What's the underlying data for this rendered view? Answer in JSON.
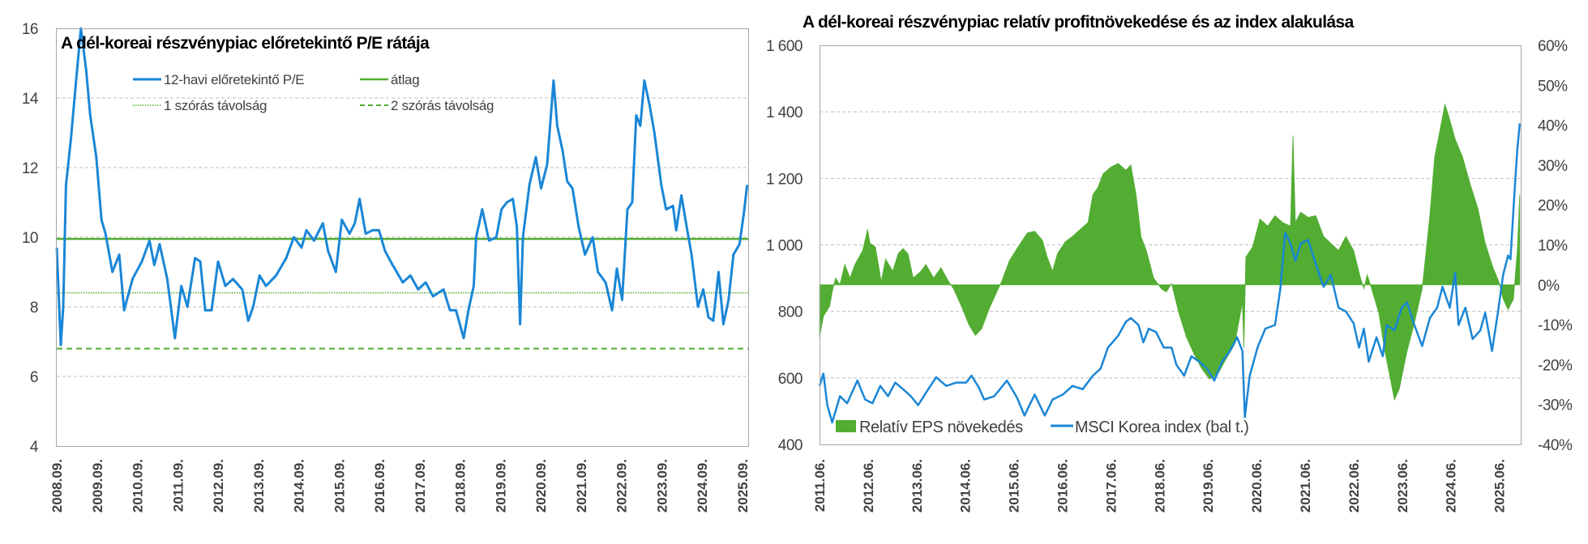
{
  "colors": {
    "blue": "#1a86d6",
    "green": "#52ad32",
    "grid": "#bfbfbf",
    "axis": "#a6a6a6"
  },
  "chart_data": [
    {
      "type": "line",
      "title": "A dél-koreai részvénypiac előretekintő P/E rátája",
      "ylim": [
        4,
        16
      ],
      "yticks": [
        4,
        6,
        8,
        10,
        12,
        14,
        16
      ],
      "xlim": [
        2008.75,
        2025.9
      ],
      "xtick_labels": [
        "2008.09.",
        "2009.09.",
        "2010.09.",
        "2011.09.",
        "2012.09.",
        "2013.09.",
        "2014.09.",
        "2015.09.",
        "2016.09.",
        "2017.09.",
        "2018.09.",
        "2019.09.",
        "2020.09.",
        "2021.09.",
        "2022.09.",
        "2023.09.",
        "2024.09.",
        "2025.09."
      ],
      "grid": true,
      "legend_placement": "top",
      "series": [
        {
          "name": "12-havi előretekintő P/E",
          "style": "line",
          "x": [
            2008.75,
            2008.85,
            2008.91,
            2008.98,
            2009.1,
            2009.23,
            2009.35,
            2009.48,
            2009.58,
            2009.73,
            2009.86,
            2009.96,
            2010.13,
            2010.3,
            2010.42,
            2010.63,
            2010.86,
            2011.05,
            2011.17,
            2011.3,
            2011.49,
            2011.68,
            2011.84,
            2011.99,
            2012.18,
            2012.31,
            2012.43,
            2012.59,
            2012.75,
            2012.93,
            2013.12,
            2013.35,
            2013.5,
            2013.62,
            2013.78,
            2013.94,
            2014.19,
            2014.44,
            2014.63,
            2014.82,
            2014.94,
            2015.13,
            2015.35,
            2015.48,
            2015.67,
            2015.82,
            2016.01,
            2016.14,
            2016.26,
            2016.41,
            2016.58,
            2016.74,
            2016.89,
            2017.08,
            2017.33,
            2017.52,
            2017.71,
            2017.9,
            2018.08,
            2018.34,
            2018.5,
            2018.65,
            2018.84,
            2018.96,
            2019.09,
            2019.15,
            2019.3,
            2019.47,
            2019.65,
            2019.78,
            2019.91,
            2020.06,
            2020.16,
            2020.24,
            2020.31,
            2020.47,
            2020.63,
            2020.76,
            2020.91,
            2021.07,
            2021.16,
            2021.29,
            2021.41,
            2021.54,
            2021.69,
            2021.85,
            2022.04,
            2022.17,
            2022.36,
            2022.52,
            2022.64,
            2022.77,
            2022.9,
            2023.02,
            2023.12,
            2023.22,
            2023.32,
            2023.45,
            2023.57,
            2023.74,
            2023.86,
            2024.03,
            2024.11,
            2024.24,
            2024.37,
            2024.49,
            2024.65,
            2024.78,
            2024.91,
            2025.03,
            2025.16,
            2025.28,
            2025.41,
            2025.53,
            2025.68,
            2025.79,
            2025.87
          ],
          "y": [
            9.7,
            6.9,
            8.0,
            11.5,
            12.8,
            14.5,
            16.0,
            14.8,
            13.5,
            12.3,
            10.5,
            10.1,
            9.0,
            9.5,
            7.9,
            8.8,
            9.3,
            9.9,
            9.2,
            9.8,
            8.8,
            7.1,
            8.6,
            8.0,
            9.4,
            9.3,
            7.9,
            7.9,
            9.3,
            8.6,
            8.8,
            8.5,
            7.6,
            8.0,
            8.9,
            8.6,
            8.9,
            9.4,
            10.0,
            9.7,
            10.2,
            9.9,
            10.4,
            9.6,
            9.0,
            10.5,
            10.1,
            10.4,
            11.1,
            10.1,
            10.2,
            10.2,
            9.6,
            9.2,
            8.7,
            8.9,
            8.5,
            8.7,
            8.3,
            8.5,
            7.9,
            7.9,
            7.1,
            7.9,
            8.6,
            10.0,
            10.8,
            9.9,
            10.0,
            10.8,
            11.0,
            11.1,
            10.3,
            7.5,
            10.0,
            11.5,
            12.3,
            11.4,
            12.1,
            14.5,
            13.2,
            12.5,
            11.6,
            11.4,
            10.3,
            9.5,
            10.0,
            9.0,
            8.7,
            7.9,
            9.1,
            8.2,
            10.8,
            11.0,
            13.5,
            13.2,
            14.5,
            13.8,
            13.0,
            11.5,
            10.8,
            10.9,
            10.2,
            11.2,
            10.3,
            9.5,
            8.0,
            8.5,
            7.7,
            7.6,
            9.0,
            7.5,
            8.2,
            9.5,
            9.8,
            10.7,
            11.5
          ]
        },
        {
          "name": "átlag",
          "style": "solid",
          "value": 9.95
        },
        {
          "name": "1 szórás távolság",
          "style": "dotted",
          "value": 8.4
        },
        {
          "name": "2 szórás távolság",
          "style": "dashed",
          "value": 6.8
        }
      ]
    },
    {
      "type": "line+area",
      "title": "A dél-koreai részvénypiac relatív profitnövekedése és az index alakulása",
      "ylim_left": [
        400,
        1600
      ],
      "yticks_left": [
        "400",
        "600",
        "800",
        "1 000",
        "1 200",
        "1 400",
        "1 600"
      ],
      "ylim_right": [
        -40,
        60
      ],
      "yticks_right": [
        "-40%",
        "-30%",
        "-20%",
        "-10%",
        "0%",
        "10%",
        "20%",
        "30%",
        "40%",
        "50%",
        "60%"
      ],
      "xlim": [
        2011.42,
        2025.84
      ],
      "xtick_labels": [
        "2011.06.",
        "2012.06.",
        "2013.06.",
        "2014.06.",
        "2015.06.",
        "2016.06.",
        "2017.06.",
        "2018.06.",
        "2019.06.",
        "2020.06.",
        "2021.06.",
        "2022.06.",
        "2023.06.",
        "2024.06.",
        "2025.06."
      ],
      "grid": true,
      "legend_placement": "bottom-left",
      "series": [
        {
          "name": "Relatív EPS növekedés",
          "style": "area",
          "axis": "right",
          "x": [
            2011.42,
            2011.5,
            2011.63,
            2011.68,
            2011.75,
            2011.84,
            2011.94,
            2012.05,
            2012.15,
            2012.31,
            2012.41,
            2012.46,
            2012.57,
            2012.69,
            2012.78,
            2012.93,
            2013.04,
            2013.14,
            2013.24,
            2013.35,
            2013.51,
            2013.61,
            2013.77,
            2013.92,
            2014.08,
            2014.18,
            2014.34,
            2014.5,
            2014.63,
            2014.76,
            2014.91,
            2015.07,
            2015.17,
            2015.33,
            2015.49,
            2015.7,
            2015.85,
            2016.01,
            2016.11,
            2016.22,
            2016.32,
            2016.48,
            2016.63,
            2016.79,
            2016.95,
            2017.05,
            2017.15,
            2017.26,
            2017.42,
            2017.57,
            2017.73,
            2017.83,
            2017.94,
            2018.04,
            2018.15,
            2018.3,
            2018.46,
            2018.56,
            2018.67,
            2018.82,
            2018.98,
            2019.14,
            2019.29,
            2019.45,
            2019.61,
            2019.76,
            2019.97,
            2020.13,
            2020.16,
            2020.2,
            2020.34,
            2020.49,
            2020.65,
            2020.8,
            2020.96,
            2021.12,
            2021.17,
            2021.22,
            2021.33,
            2021.48,
            2021.64,
            2021.8,
            2021.95,
            2022.11,
            2022.26,
            2022.42,
            2022.56,
            2022.63,
            2022.7,
            2022.79,
            2022.94,
            2023.05,
            2023.15,
            2023.26,
            2023.36,
            2023.52,
            2023.67,
            2023.83,
            2023.99,
            2024.09,
            2024.19,
            2024.3,
            2024.37,
            2024.51,
            2024.66,
            2024.82,
            2024.98,
            2025.13,
            2025.29,
            2025.41,
            2025.5,
            2025.6,
            2025.71,
            2025.79,
            2025.84
          ],
          "y": [
            -13.2,
            -7.9,
            -5.3,
            -1.8,
            1.7,
            0,
            5.1,
            1.7,
            5.1,
            8.6,
            13.9,
            10.4,
            9.5,
            0.8,
            6.4,
            3.4,
            7.8,
            9.1,
            7.8,
            1.7,
            3.4,
            5.1,
            1.7,
            4.3,
            0.8,
            -1.0,
            -5.3,
            -10.1,
            -12.7,
            -11.0,
            -6.1,
            -1.8,
            0.8,
            6.0,
            9.1,
            13.0,
            13.4,
            11.2,
            6.9,
            3.4,
            7.8,
            10.8,
            12.1,
            13.9,
            15.6,
            22.6,
            24.3,
            27.8,
            29.5,
            30.4,
            28.7,
            30.0,
            22.6,
            12.1,
            8.6,
            1.7,
            -1.0,
            -1.8,
            0.3,
            -7.1,
            -13.2,
            -17.5,
            -21.0,
            -23.6,
            -22.7,
            -19.3,
            -14.9,
            -4.4,
            -15.8,
            6.9,
            9.5,
            16.5,
            14.7,
            17.3,
            15.6,
            14.7,
            37.4,
            15.6,
            18.2,
            16.9,
            17.3,
            12.1,
            10.4,
            8.6,
            12.1,
            8.6,
            1.7,
            -1.0,
            2.5,
            -1.0,
            -7.1,
            -15.8,
            -21.9,
            -28.8,
            -26.1,
            -16.6,
            -9.6,
            -1.0,
            17.3,
            32.1,
            38.2,
            45.2,
            42.6,
            36.5,
            32.1,
            25.2,
            19.1,
            10.4,
            4.3,
            0.8,
            -3.6,
            -6.2,
            -3.6,
            8.6,
            22.6
          ]
        },
        {
          "name": "MSCI Korea index (bal t.)",
          "style": "line",
          "axis": "left",
          "x": [
            2011.42,
            2011.5,
            2011.58,
            2011.68,
            2011.84,
            2011.99,
            2012.2,
            2012.36,
            2012.51,
            2012.67,
            2012.83,
            2012.98,
            2013.14,
            2013.3,
            2013.45,
            2013.61,
            2013.82,
            2014.03,
            2014.24,
            2014.44,
            2014.55,
            2014.7,
            2014.81,
            2015.02,
            2015.28,
            2015.49,
            2015.64,
            2015.85,
            2016.06,
            2016.22,
            2016.43,
            2016.63,
            2016.84,
            2017.05,
            2017.21,
            2017.36,
            2017.57,
            2017.73,
            2017.83,
            2017.99,
            2018.09,
            2018.2,
            2018.35,
            2018.51,
            2018.67,
            2018.77,
            2018.93,
            2019.08,
            2019.24,
            2019.4,
            2019.55,
            2019.71,
            2019.87,
            2020.02,
            2020.13,
            2020.18,
            2020.28,
            2020.44,
            2020.6,
            2020.8,
            2020.91,
            2021.01,
            2021.12,
            2021.22,
            2021.33,
            2021.48,
            2021.64,
            2021.8,
            2021.95,
            2022.11,
            2022.26,
            2022.42,
            2022.53,
            2022.63,
            2022.73,
            2022.89,
            2023.02,
            2023.1,
            2023.26,
            2023.41,
            2023.52,
            2023.67,
            2023.83,
            2023.99,
            2024.14,
            2024.25,
            2024.4,
            2024.51,
            2024.58,
            2024.72,
            2024.87,
            2025.03,
            2025.13,
            2025.27,
            2025.39,
            2025.5,
            2025.6,
            2025.65,
            2025.72,
            2025.79,
            2025.84
          ],
          "y": [
            576,
            613,
            518,
            466,
            545,
            524,
            592,
            535,
            524,
            576,
            545,
            586,
            566,
            545,
            518,
            555,
            602,
            576,
            586,
            586,
            607,
            571,
            535,
            545,
            592,
            540,
            487,
            550,
            487,
            535,
            550,
            576,
            566,
            607,
            628,
            691,
            727,
            769,
            780,
            759,
            707,
            748,
            738,
            691,
            691,
            639,
            607,
            665,
            649,
            628,
            592,
            649,
            681,
            722,
            681,
            482,
            607,
            691,
            748,
            759,
            869,
            1036,
            1004,
            952,
            1004,
            1015,
            942,
            874,
            910,
            811,
            800,
            764,
            691,
            748,
            649,
            722,
            665,
            759,
            743,
            811,
            827,
            759,
            696,
            780,
            811,
            874,
            811,
            916,
            759,
            811,
            717,
            743,
            796,
            681,
            796,
            911,
            968,
            957,
            1130,
            1287,
            1365
          ]
        }
      ]
    }
  ]
}
